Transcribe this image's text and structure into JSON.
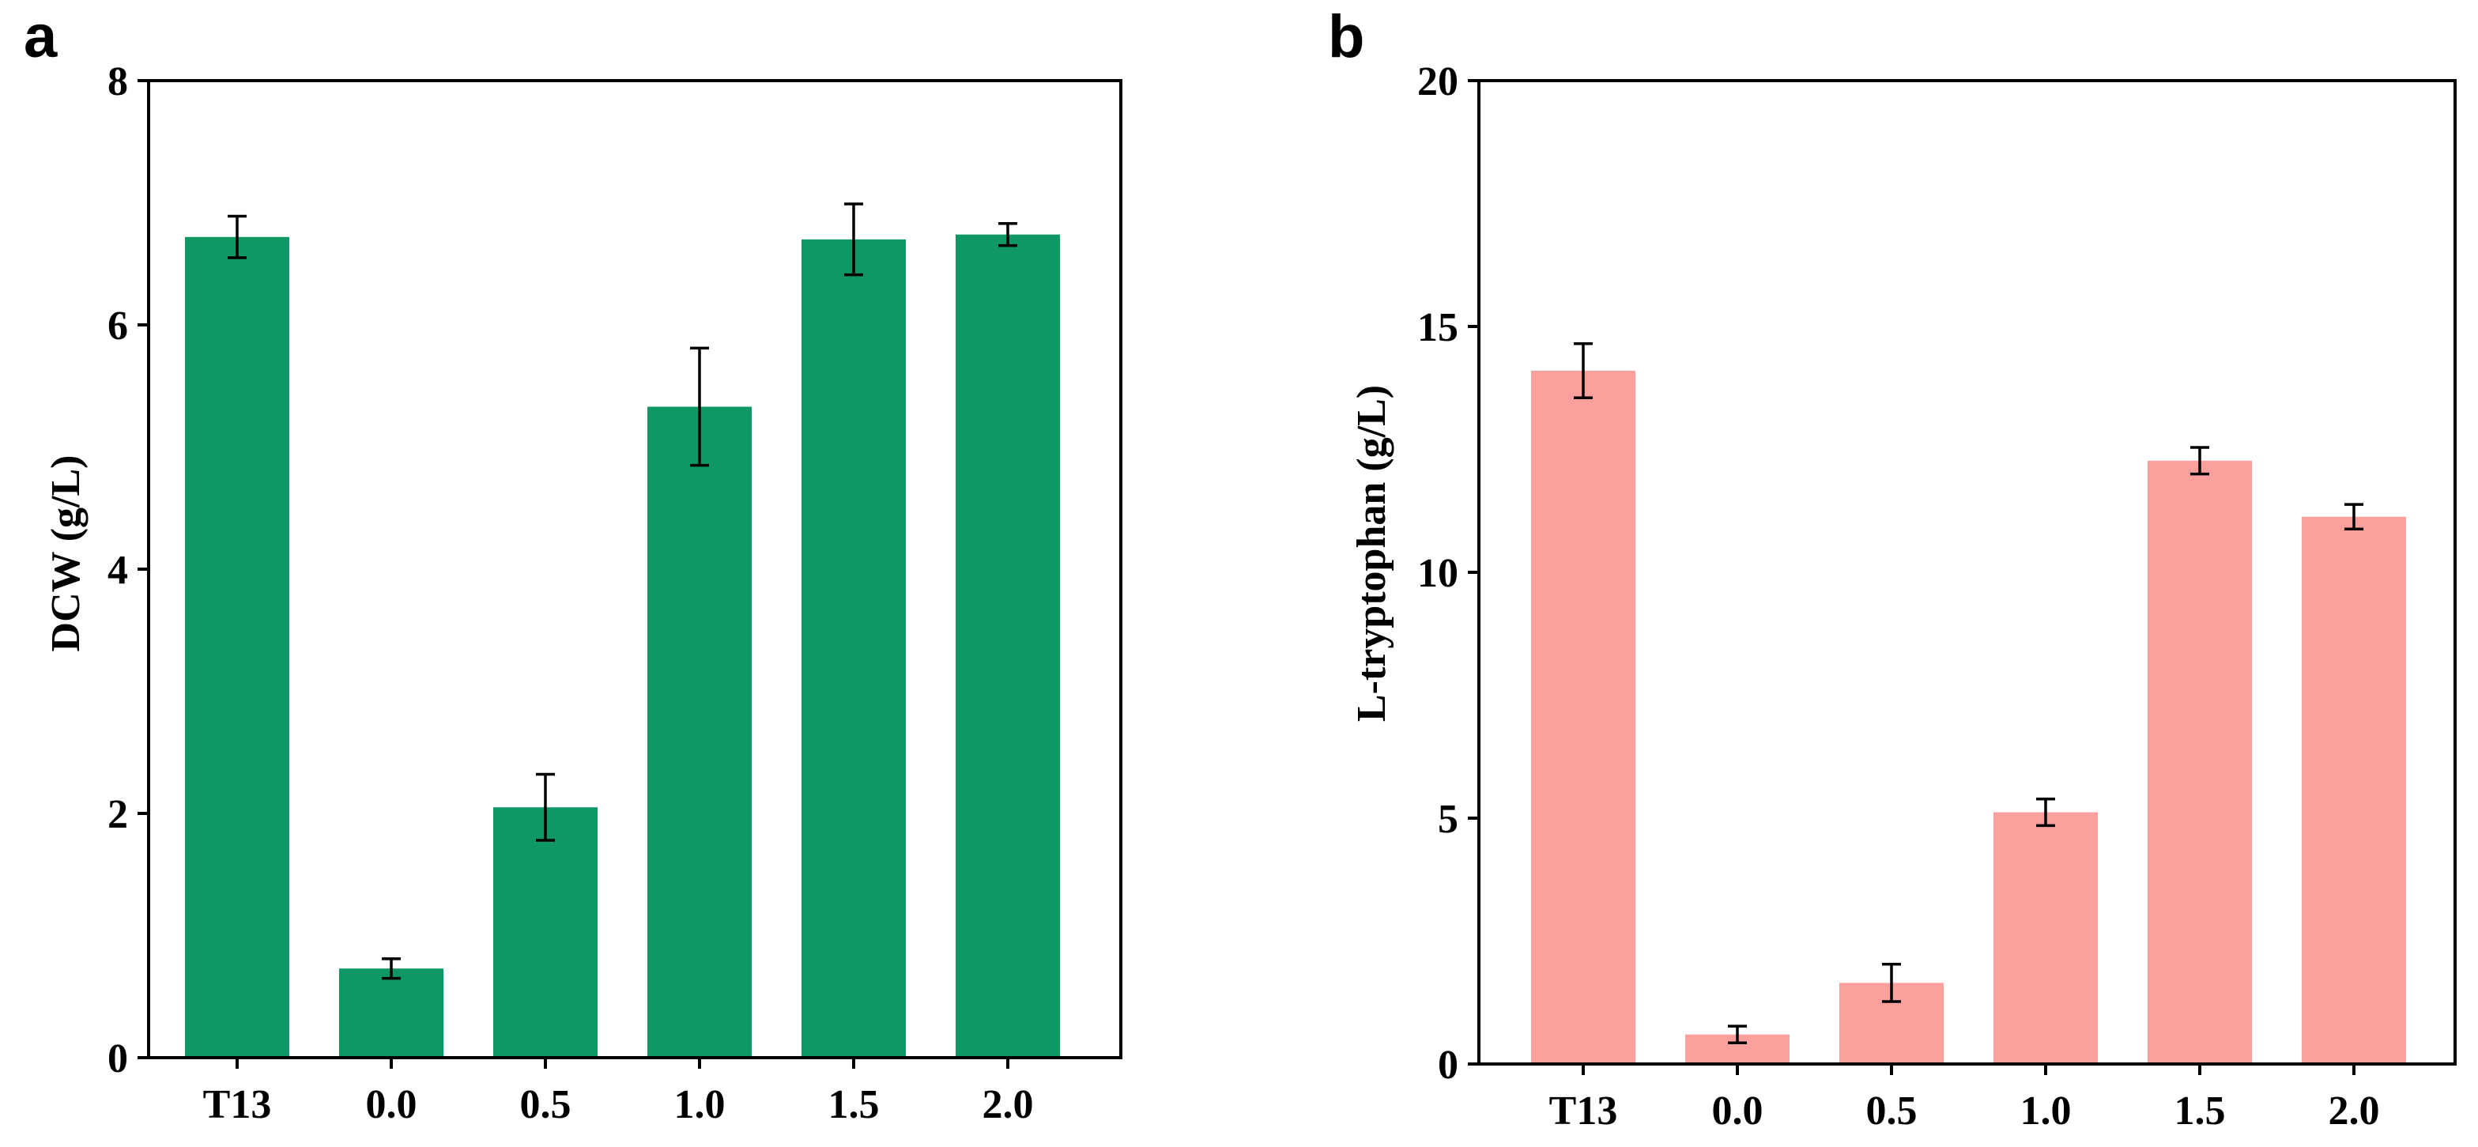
{
  "chart_data": [
    {
      "type": "bar",
      "panel_label": "a",
      "categories": [
        "T13",
        "0.0",
        "0.5",
        "1.0",
        "1.5",
        "2.0"
      ],
      "values": [
        6.72,
        0.73,
        2.05,
        5.33,
        6.7,
        6.74
      ],
      "errors": [
        0.17,
        0.08,
        0.27,
        0.48,
        0.29,
        0.09
      ],
      "ylabel": "DCW (g/L)",
      "xlabel": "",
      "ylim": [
        0,
        8
      ],
      "yticks": [
        "0",
        "2",
        "4",
        "6",
        "8"
      ],
      "color": "#0f9864"
    },
    {
      "type": "bar",
      "panel_label": "b",
      "categories": [
        "T13",
        "0.0",
        "0.5",
        "1.0",
        "1.5",
        "2.0"
      ],
      "values": [
        14.1,
        0.6,
        1.65,
        5.12,
        12.27,
        11.13
      ],
      "errors": [
        0.55,
        0.17,
        0.38,
        0.27,
        0.27,
        0.25
      ],
      "ylabel": "L-tryptophan (g/L)",
      "xlabel": "",
      "ylim": [
        0,
        20
      ],
      "yticks": [
        "0",
        "5",
        "10",
        "15",
        "20"
      ],
      "color": "#fca09e"
    }
  ]
}
